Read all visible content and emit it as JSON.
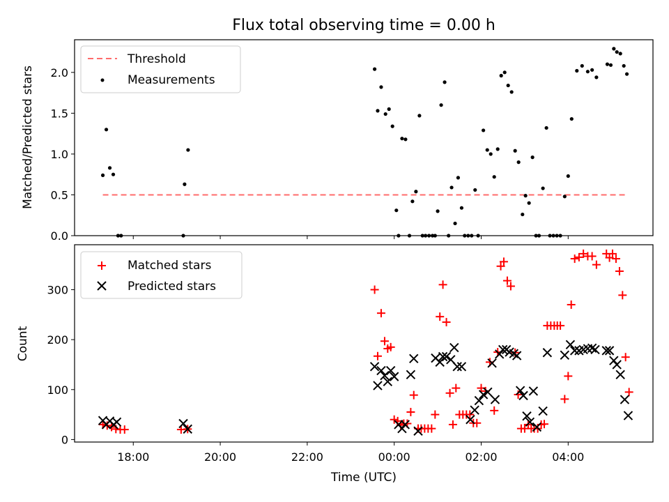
{
  "chart_data": [
    {
      "type": "scatter",
      "title": "Flux total observing time = 0.00 h",
      "xlabel": "",
      "ylabel": "Matched/Predicted stars",
      "ylim": [
        0,
        2.4
      ],
      "xlim_hours": [
        16.65,
        29.95
      ],
      "yticks": [
        0,
        0.5,
        1,
        1.5,
        2
      ],
      "ytick_labels": [
        "0.0",
        "0.5",
        "1.0",
        "1.5",
        "2.0"
      ],
      "xticks_hours": [
        18,
        20,
        22,
        24,
        26,
        28
      ],
      "legend": {
        "location": "upper-left",
        "entries": [
          "Threshold",
          "Measurements"
        ]
      },
      "threshold": {
        "name": "Threshold",
        "value": 0.5,
        "x_range": [
          17.3,
          29.35
        ],
        "color": "#ff6b6b"
      },
      "series": [
        {
          "name": "Measurements",
          "color": "#000000",
          "points": [
            [
              17.3,
              0.74
            ],
            [
              17.38,
              1.3
            ],
            [
              17.46,
              0.83
            ],
            [
              17.54,
              0.75
            ],
            [
              17.65,
              0.0
            ],
            [
              17.72,
              0.0
            ],
            [
              19.15,
              0.0
            ],
            [
              19.18,
              0.63
            ],
            [
              19.26,
              1.05
            ],
            [
              23.55,
              2.04
            ],
            [
              23.62,
              1.53
            ],
            [
              23.7,
              1.82
            ],
            [
              23.8,
              1.49
            ],
            [
              23.88,
              1.55
            ],
            [
              23.96,
              1.34
            ],
            [
              24.05,
              0.31
            ],
            [
              24.1,
              0.0
            ],
            [
              24.18,
              1.19
            ],
            [
              24.26,
              1.18
            ],
            [
              24.35,
              0.0
            ],
            [
              24.42,
              0.42
            ],
            [
              24.5,
              0.54
            ],
            [
              24.58,
              1.47
            ],
            [
              24.65,
              0.0
            ],
            [
              24.72,
              0.0
            ],
            [
              24.8,
              0.0
            ],
            [
              24.88,
              0.0
            ],
            [
              24.94,
              0.0
            ],
            [
              25.0,
              0.3
            ],
            [
              25.08,
              1.6
            ],
            [
              25.16,
              1.88
            ],
            [
              25.25,
              0.0
            ],
            [
              25.32,
              0.59
            ],
            [
              25.4,
              0.15
            ],
            [
              25.47,
              0.71
            ],
            [
              25.55,
              0.34
            ],
            [
              25.62,
              0.0
            ],
            [
              25.7,
              0.0
            ],
            [
              25.78,
              0.0
            ],
            [
              25.86,
              0.56
            ],
            [
              25.93,
              0.0
            ],
            [
              26.05,
              1.29
            ],
            [
              26.14,
              1.05
            ],
            [
              26.22,
              1.0
            ],
            [
              26.3,
              0.72
            ],
            [
              26.38,
              1.06
            ],
            [
              26.46,
              1.96
            ],
            [
              26.54,
              2.0
            ],
            [
              26.62,
              1.84
            ],
            [
              26.7,
              1.76
            ],
            [
              26.78,
              1.04
            ],
            [
              26.86,
              0.9
            ],
            [
              26.95,
              0.26
            ],
            [
              27.02,
              0.49
            ],
            [
              27.1,
              0.4
            ],
            [
              27.18,
              0.96
            ],
            [
              27.26,
              0.0
            ],
            [
              27.33,
              0.0
            ],
            [
              27.42,
              0.58
            ],
            [
              27.5,
              1.32
            ],
            [
              27.58,
              0.0
            ],
            [
              27.66,
              0.0
            ],
            [
              27.74,
              0.0
            ],
            [
              27.82,
              0.0
            ],
            [
              27.92,
              0.48
            ],
            [
              28.0,
              0.73
            ],
            [
              28.08,
              1.43
            ],
            [
              28.2,
              2.02
            ],
            [
              28.32,
              2.08
            ],
            [
              28.45,
              2.01
            ],
            [
              28.55,
              2.03
            ],
            [
              28.65,
              1.94
            ],
            [
              28.9,
              2.1
            ],
            [
              28.98,
              2.09
            ],
            [
              29.05,
              2.29
            ],
            [
              29.12,
              2.25
            ],
            [
              29.2,
              2.23
            ],
            [
              29.28,
              2.08
            ],
            [
              29.35,
              1.98
            ]
          ]
        }
      ]
    },
    {
      "type": "scatter",
      "title": "",
      "xlabel": "Time (UTC)",
      "ylabel": "Count",
      "ylim": [
        -5,
        390
      ],
      "xlim_hours": [
        16.65,
        29.95
      ],
      "yticks": [
        0,
        100,
        200,
        300
      ],
      "ytick_labels": [
        "0",
        "100",
        "200",
        "300"
      ],
      "xticks_hours": [
        18,
        20,
        22,
        24,
        26,
        28
      ],
      "xtick_labels": [
        "18:00",
        "20:00",
        "22:00",
        "00:00",
        "02:00",
        "04:00"
      ],
      "legend": {
        "location": "upper-left",
        "entries": [
          "Matched stars",
          "Predicted stars"
        ]
      },
      "series": [
        {
          "name": "Matched stars",
          "marker": "plus",
          "color": "#ff0000",
          "points": [
            [
              17.3,
              30
            ],
            [
              17.4,
              28
            ],
            [
              17.5,
              25
            ],
            [
              17.6,
              21
            ],
            [
              17.7,
              20
            ],
            [
              17.8,
              20
            ],
            [
              19.1,
              20
            ],
            [
              19.25,
              21
            ],
            [
              23.55,
              300
            ],
            [
              23.62,
              167
            ],
            [
              23.7,
              253
            ],
            [
              23.78,
              197
            ],
            [
              23.85,
              182
            ],
            [
              23.92,
              185
            ],
            [
              24.0,
              40
            ],
            [
              24.08,
              37
            ],
            [
              24.15,
              29
            ],
            [
              24.22,
              32
            ],
            [
              24.3,
              32
            ],
            [
              24.38,
              55
            ],
            [
              24.45,
              89
            ],
            [
              24.55,
              22
            ],
            [
              24.62,
              22
            ],
            [
              24.7,
              22
            ],
            [
              24.78,
              22
            ],
            [
              24.86,
              22
            ],
            [
              24.94,
              50
            ],
            [
              25.05,
              246
            ],
            [
              25.12,
              310
            ],
            [
              25.2,
              235
            ],
            [
              25.28,
              93
            ],
            [
              25.35,
              30
            ],
            [
              25.42,
              103
            ],
            [
              25.5,
              50
            ],
            [
              25.58,
              50
            ],
            [
              25.66,
              50
            ],
            [
              25.74,
              50
            ],
            [
              25.82,
              33
            ],
            [
              25.9,
              33
            ],
            [
              26.0,
              103
            ],
            [
              26.1,
              97
            ],
            [
              26.2,
              155
            ],
            [
              26.3,
              58
            ],
            [
              26.38,
              175
            ],
            [
              26.45,
              347
            ],
            [
              26.52,
              356
            ],
            [
              26.6,
              318
            ],
            [
              26.68,
              307
            ],
            [
              26.78,
              174
            ],
            [
              26.85,
              90
            ],
            [
              26.92,
              22
            ],
            [
              27.0,
              22
            ],
            [
              27.08,
              30
            ],
            [
              27.15,
              22
            ],
            [
              27.22,
              22
            ],
            [
              27.3,
              22
            ],
            [
              27.38,
              30
            ],
            [
              27.45,
              31
            ],
            [
              27.52,
              228
            ],
            [
              27.6,
              228
            ],
            [
              27.68,
              228
            ],
            [
              27.75,
              228
            ],
            [
              27.82,
              228
            ],
            [
              27.92,
              81
            ],
            [
              28.0,
              127
            ],
            [
              28.07,
              270
            ],
            [
              28.15,
              362
            ],
            [
              28.25,
              365
            ],
            [
              28.35,
              372
            ],
            [
              28.45,
              367
            ],
            [
              28.55,
              367
            ],
            [
              28.65,
              350
            ],
            [
              28.88,
              372
            ],
            [
              28.95,
              364
            ],
            [
              29.02,
              372
            ],
            [
              29.1,
              362
            ],
            [
              29.18,
              337
            ],
            [
              29.25,
              289
            ],
            [
              29.32,
              165
            ],
            [
              29.4,
              95
            ]
          ]
        },
        {
          "name": "Predicted stars",
          "marker": "x",
          "color": "#000000",
          "points": [
            [
              17.3,
              38
            ],
            [
              17.38,
              30
            ],
            [
              17.46,
              37
            ],
            [
              17.55,
              30
            ],
            [
              17.62,
              35
            ],
            [
              19.15,
              32
            ],
            [
              19.25,
              21
            ],
            [
              23.55,
              146
            ],
            [
              23.62,
              108
            ],
            [
              23.7,
              138
            ],
            [
              23.78,
              128
            ],
            [
              23.85,
              116
            ],
            [
              23.92,
              138
            ],
            [
              24.0,
              126
            ],
            [
              24.1,
              30
            ],
            [
              24.18,
              22
            ],
            [
              24.25,
              30
            ],
            [
              24.38,
              130
            ],
            [
              24.45,
              162
            ],
            [
              24.55,
              17
            ],
            [
              24.95,
              163
            ],
            [
              25.05,
              155
            ],
            [
              25.12,
              166
            ],
            [
              25.2,
              166
            ],
            [
              25.3,
              160
            ],
            [
              25.38,
              184
            ],
            [
              25.45,
              146
            ],
            [
              25.55,
              146
            ],
            [
              25.75,
              40
            ],
            [
              25.85,
              59
            ],
            [
              25.95,
              78
            ],
            [
              26.05,
              90
            ],
            [
              26.15,
              95
            ],
            [
              26.25,
              153
            ],
            [
              26.32,
              80
            ],
            [
              26.42,
              171
            ],
            [
              26.5,
              180
            ],
            [
              26.58,
              180
            ],
            [
              26.65,
              175
            ],
            [
              26.75,
              172
            ],
            [
              26.82,
              168
            ],
            [
              26.9,
              98
            ],
            [
              26.97,
              88
            ],
            [
              27.05,
              47
            ],
            [
              27.12,
              35
            ],
            [
              27.2,
              97
            ],
            [
              27.28,
              25
            ],
            [
              27.42,
              57
            ],
            [
              27.52,
              174
            ],
            [
              27.92,
              169
            ],
            [
              28.05,
              190
            ],
            [
              28.15,
              178
            ],
            [
              28.25,
              178
            ],
            [
              28.35,
              180
            ],
            [
              28.45,
              182
            ],
            [
              28.55,
              183
            ],
            [
              28.62,
              180
            ],
            [
              28.88,
              178
            ],
            [
              28.95,
              178
            ],
            [
              29.05,
              158
            ],
            [
              29.12,
              150
            ],
            [
              29.2,
              130
            ],
            [
              29.3,
              80
            ],
            [
              29.38,
              48
            ]
          ]
        }
      ]
    }
  ]
}
